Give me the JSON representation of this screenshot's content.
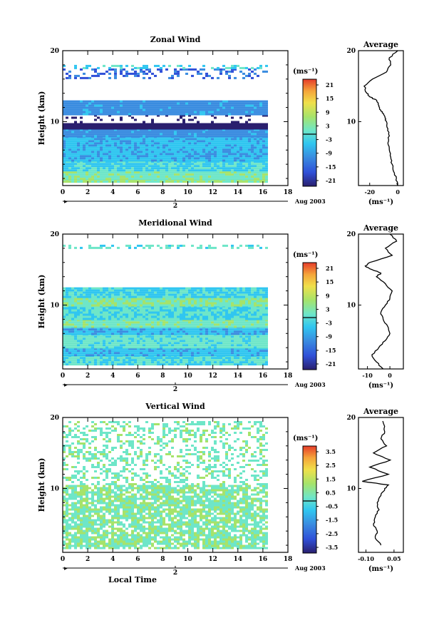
{
  "panels": [
    {
      "id": "zonal",
      "title": "Zonal Wind",
      "unit": "(ms⁻¹)",
      "colorbar_ticks": [
        "21",
        "15",
        "9",
        "3",
        "-3",
        "-9",
        "-15",
        "-21"
      ],
      "profile_title": "Average",
      "profile_xticks": [
        "-20",
        "0"
      ],
      "profile_xlim": [
        -28,
        4
      ],
      "profile_unit": "(ms⁻¹)"
    },
    {
      "id": "meridional",
      "title": "Meridional Wind",
      "unit": "(ms⁻¹)",
      "colorbar_ticks": [
        "21",
        "15",
        "9",
        "3",
        "-3",
        "-9",
        "-15",
        "-21"
      ],
      "profile_title": "Average",
      "profile_xticks": [
        "-10",
        "0"
      ],
      "profile_xlim": [
        -14,
        6
      ],
      "profile_unit": "(ms⁻¹)"
    },
    {
      "id": "vertical",
      "title": "Vertical Wind",
      "unit": "(ms⁻¹)",
      "colorbar_ticks": [
        "3.5",
        "2.5",
        "1.5",
        "0.5",
        "-0.5",
        "-1.5",
        "-2.5",
        "-3.5"
      ],
      "profile_title": "Average",
      "profile_xticks": [
        "-0.10",
        "0.05"
      ],
      "profile_xlim": [
        -0.14,
        0.1
      ],
      "profile_unit": "(ms⁻¹)"
    }
  ],
  "shared": {
    "ylabel": "Height (km)",
    "yticks": [
      "20",
      "10"
    ],
    "xticks": [
      "0",
      "2",
      "4",
      "6",
      "8",
      "10",
      "12",
      "14",
      "16",
      "18"
    ],
    "xlim": [
      0,
      18
    ],
    "ylim": [
      1,
      20
    ],
    "date_marker": "2",
    "date_label": "Aug 2003",
    "xlabel": "Local Time"
  },
  "chart_data": [
    {
      "type": "heatmap",
      "title": "Zonal Wind",
      "ylabel": "Height (km)",
      "xlim": [
        0,
        18
      ],
      "ylim": [
        1,
        20
      ],
      "colorbar_range": [
        -21,
        21
      ],
      "data_coverage_x": [
        0,
        16.2
      ],
      "bands": [
        {
          "y": [
            1.5,
            2.0
          ],
          "value": 3
        },
        {
          "y": [
            2.0,
            3.0
          ],
          "value": 1
        },
        {
          "y": [
            3.0,
            4.5
          ],
          "value": -3
        },
        {
          "y": [
            4.5,
            8.0
          ],
          "value": -6
        },
        {
          "y": [
            8.0,
            9.0
          ],
          "value": -9
        },
        {
          "y": [
            9.0,
            11.0
          ],
          "value": -21,
          "coverage": "edge"
        },
        {
          "y": [
            11.0,
            13.0
          ],
          "value": -9
        },
        {
          "y": [
            16.0,
            17.5
          ],
          "value": -12,
          "coverage": "sparse"
        },
        {
          "y": [
            17.5,
            18.0
          ],
          "value": -3,
          "coverage": "sparse"
        }
      ]
    },
    {
      "type": "line",
      "title": "Average",
      "series": [
        {
          "x": [
            0.0,
            -1,
            -3,
            -4,
            -5,
            -6,
            -7,
            -6,
            -7,
            -8,
            -9,
            -10,
            -12,
            -13,
            -14,
            -15,
            -20,
            -22,
            -24,
            -18,
            -8,
            -5,
            -6,
            0.0
          ],
          "y": [
            1,
            2,
            3,
            4,
            5,
            6,
            7,
            8,
            9,
            10,
            10.5,
            11,
            11.5,
            12,
            12.5,
            13,
            13.5,
            14,
            15,
            16,
            17,
            18,
            19,
            20
          ]
        }
      ],
      "xlim": [
        -28,
        4
      ],
      "ylim": [
        1,
        20
      ]
    },
    {
      "type": "heatmap",
      "title": "Meridional Wind",
      "ylabel": "Height (km)",
      "xlim": [
        0,
        18
      ],
      "ylim": [
        1,
        20
      ],
      "colorbar_range": [
        -21,
        21
      ],
      "data_coverage_x": [
        0,
        16.2
      ],
      "bands": [
        {
          "y": [
            1.5,
            3.0
          ],
          "value": -2
        },
        {
          "y": [
            3.0,
            4.0
          ],
          "value": -6
        },
        {
          "y": [
            4.0,
            6.0
          ],
          "value": -1
        },
        {
          "y": [
            6.0,
            7.0
          ],
          "value": -6
        },
        {
          "y": [
            7.0,
            8.0
          ],
          "value": 1
        },
        {
          "y": [
            8.0,
            10.0
          ],
          "value": -2
        },
        {
          "y": [
            10.0,
            11.0
          ],
          "value": 2
        },
        {
          "y": [
            11.0,
            12.5
          ],
          "value": -3
        },
        {
          "y": [
            18.0,
            18.5
          ],
          "value": -1,
          "coverage": "sparse"
        }
      ]
    },
    {
      "type": "line",
      "title": "Average",
      "series": [
        {
          "x": [
            -3,
            -6,
            -8,
            -5,
            -2,
            0,
            -1,
            -3,
            -4,
            -2,
            0,
            1,
            -2,
            -6,
            -4,
            -8,
            -11,
            -9,
            1,
            -2,
            3,
            0
          ],
          "y": [
            1,
            2,
            3,
            4,
            5,
            6,
            7,
            8,
            9,
            10,
            11,
            12,
            13,
            14,
            14.5,
            15,
            15.5,
            16,
            17,
            18,
            19,
            20
          ]
        }
      ],
      "xlim": [
        -14,
        6
      ],
      "ylim": [
        1,
        20
      ]
    },
    {
      "type": "heatmap",
      "title": "Vertical Wind",
      "ylabel": "Height (km)",
      "xlabel": "Local Time",
      "xlim": [
        0,
        18
      ],
      "ylim": [
        1,
        20
      ],
      "colorbar_range": [
        -3.5,
        3.5
      ],
      "data_coverage_x": [
        0,
        16.2
      ],
      "bands": [
        {
          "y": [
            1.5,
            10.5
          ],
          "value": 0.3,
          "coverage": "patchy"
        },
        {
          "y": [
            10.5,
            19.5
          ],
          "value": 0.2,
          "coverage": "sparse"
        }
      ]
    },
    {
      "type": "line",
      "title": "Average",
      "series": [
        {
          "x": [
            -0.02,
            -0.05,
            -0.04,
            -0.06,
            -0.05,
            -0.03,
            -0.04,
            -0.02,
            -0.01,
            0.0,
            0.02,
            -0.12,
            0.02,
            -0.08,
            0.03,
            -0.06,
            0.01,
            -0.02,
            0.0,
            -0.01
          ],
          "y": [
            2,
            3,
            4,
            5,
            6,
            7,
            8,
            9,
            9.5,
            10,
            10.5,
            11,
            12,
            13,
            14,
            15,
            16,
            17,
            18,
            19.5
          ]
        }
      ],
      "xlim": [
        -0.14,
        0.1
      ],
      "ylim": [
        1,
        20
      ]
    }
  ],
  "colormap": [
    "#2a1f6e",
    "#3050d8",
    "#3a8ce0",
    "#30c6f0",
    "#6ee6c8",
    "#a6e36a",
    "#f0e04a",
    "#f5a43a",
    "#e63c2a"
  ]
}
